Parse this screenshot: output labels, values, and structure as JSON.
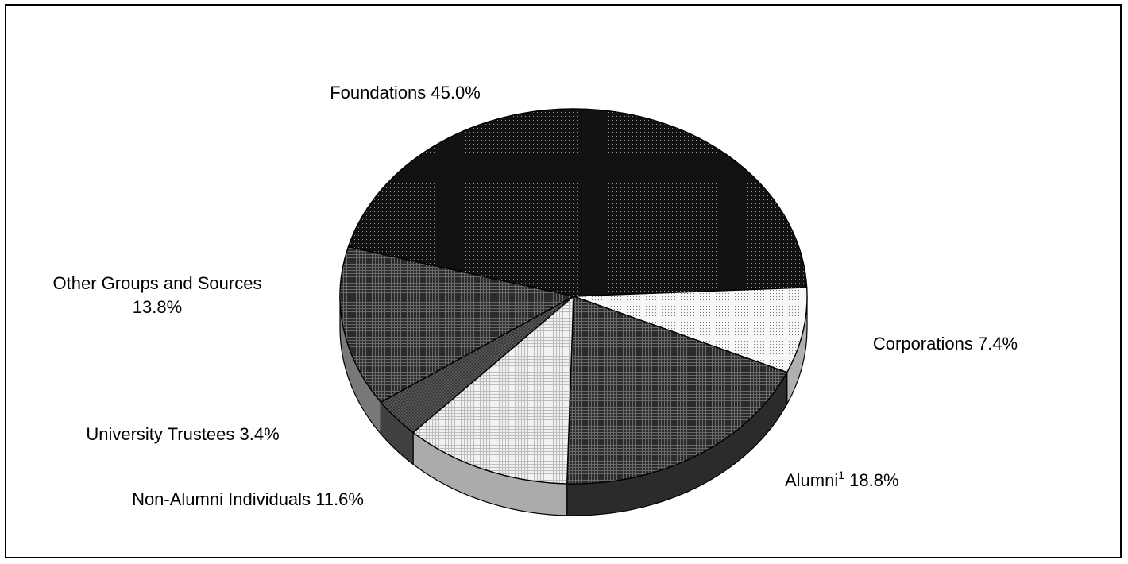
{
  "chart_data": {
    "type": "pie",
    "style": "3d",
    "title": "",
    "slices": [
      {
        "key": "foundations",
        "label": "Foundations",
        "value": 45.0,
        "display": "45.0%",
        "color": "#111111",
        "pattern": "dots-light"
      },
      {
        "key": "corporations",
        "label": "Corporations",
        "value": 7.4,
        "display": "7.4%",
        "color": "#f4f4f4",
        "pattern": "dots-dark"
      },
      {
        "key": "alumni",
        "label": "Alumni",
        "label_sup": "1",
        "value": 18.8,
        "display": "18.8%",
        "color": "#2b2b2b",
        "pattern": "grid-light"
      },
      {
        "key": "non_alumni_individuals",
        "label": "Non-Alumni Individuals",
        "value": 11.6,
        "display": "11.6%",
        "color": "#eeeeee",
        "pattern": "grid-dark"
      },
      {
        "key": "university_trustees",
        "label": "University Trustees",
        "value": 3.4,
        "display": "3.4%",
        "color": "#5a5a5a",
        "pattern": "cross"
      },
      {
        "key": "other_groups",
        "label": "Other Groups and Sources",
        "value": 13.8,
        "display": "13.8%",
        "color": "#a6a6a6",
        "pattern": "grid-light"
      }
    ]
  },
  "labels": {
    "foundations": "Foundations 45.0%",
    "corporations": "Corporations 7.4%",
    "alumni_name": "Alumni",
    "alumni_sup": "1",
    "alumni_value": " 18.8%",
    "non_alumni_individuals": "Non-Alumni Individuals 11.6%",
    "university_trustees": "University Trustees 3.4%",
    "other_groups_line1": "Other Groups and Sources",
    "other_groups_line2": "13.8%"
  }
}
